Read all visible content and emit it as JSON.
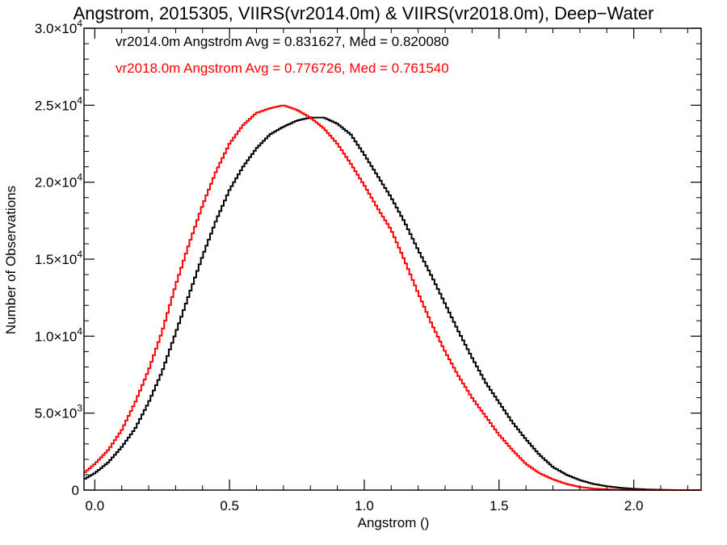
{
  "chart_data": {
    "type": "histogram",
    "title": "Angstrom, 2015305, VIIRS(vr2014.0m) & VIIRS(vr2018.0m), Deep−Water",
    "xlabel": "Angstrom ()",
    "ylabel": "Number of Observations",
    "xlim": [
      -0.04,
      2.25
    ],
    "ylim": [
      0,
      30000
    ],
    "x_ticks": [
      0.0,
      0.5,
      1.0,
      1.5,
      2.0
    ],
    "x_tick_labels": [
      "0.0",
      "0.5",
      "1.0",
      "1.5",
      "2.0"
    ],
    "y_ticks": [
      0,
      5000,
      10000,
      15000,
      20000,
      25000,
      30000
    ],
    "y_tick_labels": [
      {
        "mantissa": "0",
        "exponent": ""
      },
      {
        "mantissa": "5.0×10",
        "exponent": "3"
      },
      {
        "mantissa": "1.0×10",
        "exponent": "4"
      },
      {
        "mantissa": "1.5×10",
        "exponent": "4"
      },
      {
        "mantissa": "2.0×10",
        "exponent": "4"
      },
      {
        "mantissa": "2.5×10",
        "exponent": "4"
      },
      {
        "mantissa": "3.0×10",
        "exponent": "4"
      }
    ],
    "legend_placement": "top-left",
    "grid": false,
    "series": [
      {
        "name": "vr2014.0m",
        "legend_text": "vr2014.0m Angstrom Avg = 0.831627, Med = 0.820080",
        "color": "#000000",
        "x": [
          -0.04,
          0.0,
          0.05,
          0.1,
          0.15,
          0.2,
          0.25,
          0.3,
          0.35,
          0.4,
          0.45,
          0.5,
          0.55,
          0.6,
          0.65,
          0.7,
          0.75,
          0.8,
          0.85,
          0.9,
          0.95,
          1.0,
          1.05,
          1.1,
          1.15,
          1.2,
          1.25,
          1.3,
          1.35,
          1.4,
          1.45,
          1.5,
          1.55,
          1.6,
          1.65,
          1.7,
          1.75,
          1.8,
          1.85,
          1.9,
          1.95,
          2.0,
          2.05,
          2.1,
          2.15,
          2.2,
          2.25
        ],
        "values": [
          700,
          1100,
          1800,
          2800,
          4000,
          5700,
          7700,
          10200,
          12700,
          15200,
          17500,
          19500,
          21000,
          22200,
          23100,
          23600,
          24000,
          24200,
          24200,
          23800,
          23100,
          21800,
          20400,
          19000,
          17400,
          15600,
          13900,
          12100,
          10300,
          8600,
          7000,
          5700,
          4400,
          3300,
          2300,
          1500,
          1000,
          650,
          400,
          250,
          150,
          80,
          40,
          20,
          0,
          0,
          0
        ]
      },
      {
        "name": "vr2018.0m",
        "legend_text": "vr2018.0m Angstrom Avg = 0.776726, Med = 0.761540",
        "color": "#ff0000",
        "x": [
          -0.04,
          0.0,
          0.05,
          0.1,
          0.15,
          0.2,
          0.25,
          0.3,
          0.35,
          0.4,
          0.45,
          0.5,
          0.55,
          0.6,
          0.65,
          0.7,
          0.75,
          0.8,
          0.85,
          0.9,
          0.95,
          1.0,
          1.05,
          1.1,
          1.15,
          1.2,
          1.25,
          1.3,
          1.35,
          1.4,
          1.45,
          1.5,
          1.55,
          1.6,
          1.65,
          1.7,
          1.75,
          1.8,
          1.85,
          1.9,
          1.95,
          2.0,
          2.05,
          2.1,
          2.15,
          2.2,
          2.25
        ],
        "values": [
          1100,
          1700,
          2600,
          3900,
          5700,
          7800,
          10300,
          13300,
          16000,
          18500,
          20700,
          22500,
          23700,
          24500,
          24800,
          25000,
          24700,
          24200,
          23500,
          22500,
          21200,
          19800,
          18300,
          16900,
          14900,
          12800,
          10800,
          9000,
          7400,
          6000,
          4800,
          3600,
          2600,
          1700,
          1100,
          700,
          400,
          200,
          100,
          50,
          20,
          10,
          5,
          0,
          0,
          0,
          0
        ]
      }
    ]
  }
}
